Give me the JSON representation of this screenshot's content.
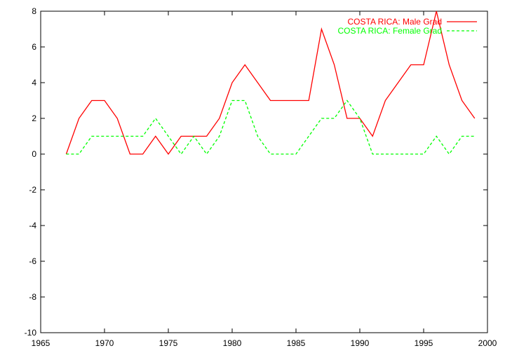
{
  "chart_data": {
    "type": "line",
    "title": "",
    "xlabel": "",
    "ylabel": "",
    "xlim": [
      1965,
      2000
    ],
    "ylim": [
      -10,
      8
    ],
    "x_ticks": [
      1965,
      1970,
      1975,
      1980,
      1985,
      1990,
      1995,
      2000
    ],
    "y_ticks": [
      -10,
      -8,
      -6,
      -4,
      -2,
      0,
      2,
      4,
      6,
      8
    ],
    "grid": false,
    "legend_position": "top-right",
    "x": [
      1967,
      1968,
      1969,
      1970,
      1971,
      1972,
      1973,
      1974,
      1975,
      1976,
      1977,
      1978,
      1979,
      1980,
      1981,
      1982,
      1983,
      1984,
      1985,
      1986,
      1987,
      1988,
      1989,
      1990,
      1991,
      1992,
      1993,
      1994,
      1995,
      1996,
      1997,
      1998,
      1999
    ],
    "series": [
      {
        "name": "COSTA RICA: Male Grad",
        "color": "#ff0000",
        "line_style": "solid",
        "values": [
          0,
          2,
          3,
          3,
          2,
          0,
          0,
          1,
          0,
          1,
          1,
          1,
          2,
          4,
          5,
          4,
          3,
          3,
          3,
          3,
          7,
          5,
          2,
          2,
          1,
          3,
          4,
          5,
          5,
          8,
          5,
          3,
          2
        ]
      },
      {
        "name": "COSTA RICA: Female Grad",
        "color": "#00ff00",
        "line_style": "dashed",
        "values": [
          0,
          0,
          1,
          1,
          1,
          1,
          1,
          2,
          1,
          0,
          1,
          0,
          1,
          3,
          3,
          1,
          0,
          0,
          0,
          1,
          2,
          2,
          3,
          2,
          0,
          0,
          0,
          0,
          0,
          1,
          0,
          1,
          1
        ]
      }
    ]
  }
}
